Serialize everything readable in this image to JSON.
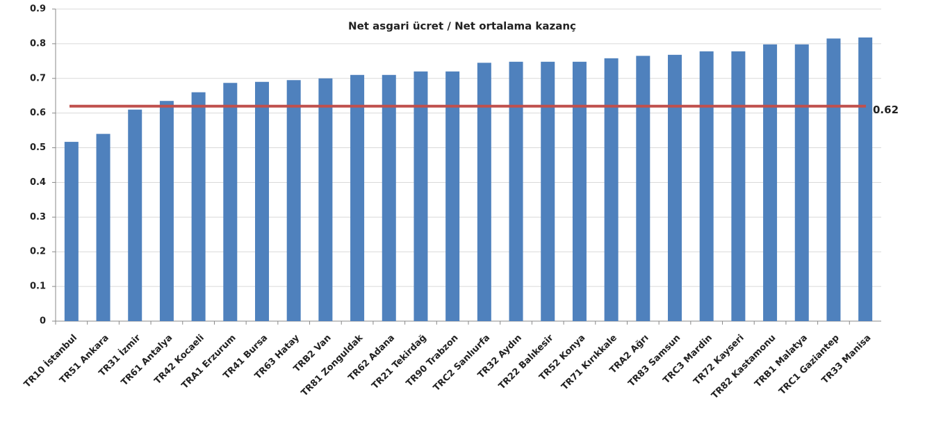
{
  "chart_data": {
    "type": "bar",
    "title": "Net asgari ücret / Net ortalama kazanç",
    "categories": [
      "TR10 İstanbul",
      "TR51 Ankara",
      "TR31 İzmir",
      "TR61 Antalya",
      "TR42 Kocaeli",
      "TRA1 Erzurum",
      "TR41 Bursa",
      "TR63 Hatay",
      "TRB2 Van",
      "TR81 Zonguldak",
      "TR62 Adana",
      "TR21 Tekirdağ",
      "TR90 Trabzon",
      "TRC2 Sanlıurfa",
      "TR32 Aydın",
      "TR22 Balıkesir",
      "TR52 Konya",
      "TR71 Kırıkkale",
      "TRA2 Ağrı",
      "TR83 Samsun",
      "TRC3 Mardin",
      "TR72 Kayseri",
      "TR82 Kastamonu",
      "TRB1 Malatya",
      "TRC1 Gaziantep",
      "TR33 Manisa"
    ],
    "values": [
      0.517,
      0.54,
      0.61,
      0.635,
      0.66,
      0.687,
      0.69,
      0.695,
      0.7,
      0.71,
      0.71,
      0.72,
      0.72,
      0.745,
      0.748,
      0.748,
      0.748,
      0.758,
      0.765,
      0.768,
      0.778,
      0.778,
      0.798,
      0.798,
      0.815,
      0.818
    ],
    "color": "#4f81bd",
    "reference_line": 0.62,
    "reference_color": "#c0504d",
    "ylim": [
      0,
      0.9
    ],
    "yticks": [
      0,
      0.1,
      0.2,
      0.3,
      0.4,
      0.5,
      0.6,
      0.7,
      0.8,
      0.9
    ],
    "grid": true
  }
}
